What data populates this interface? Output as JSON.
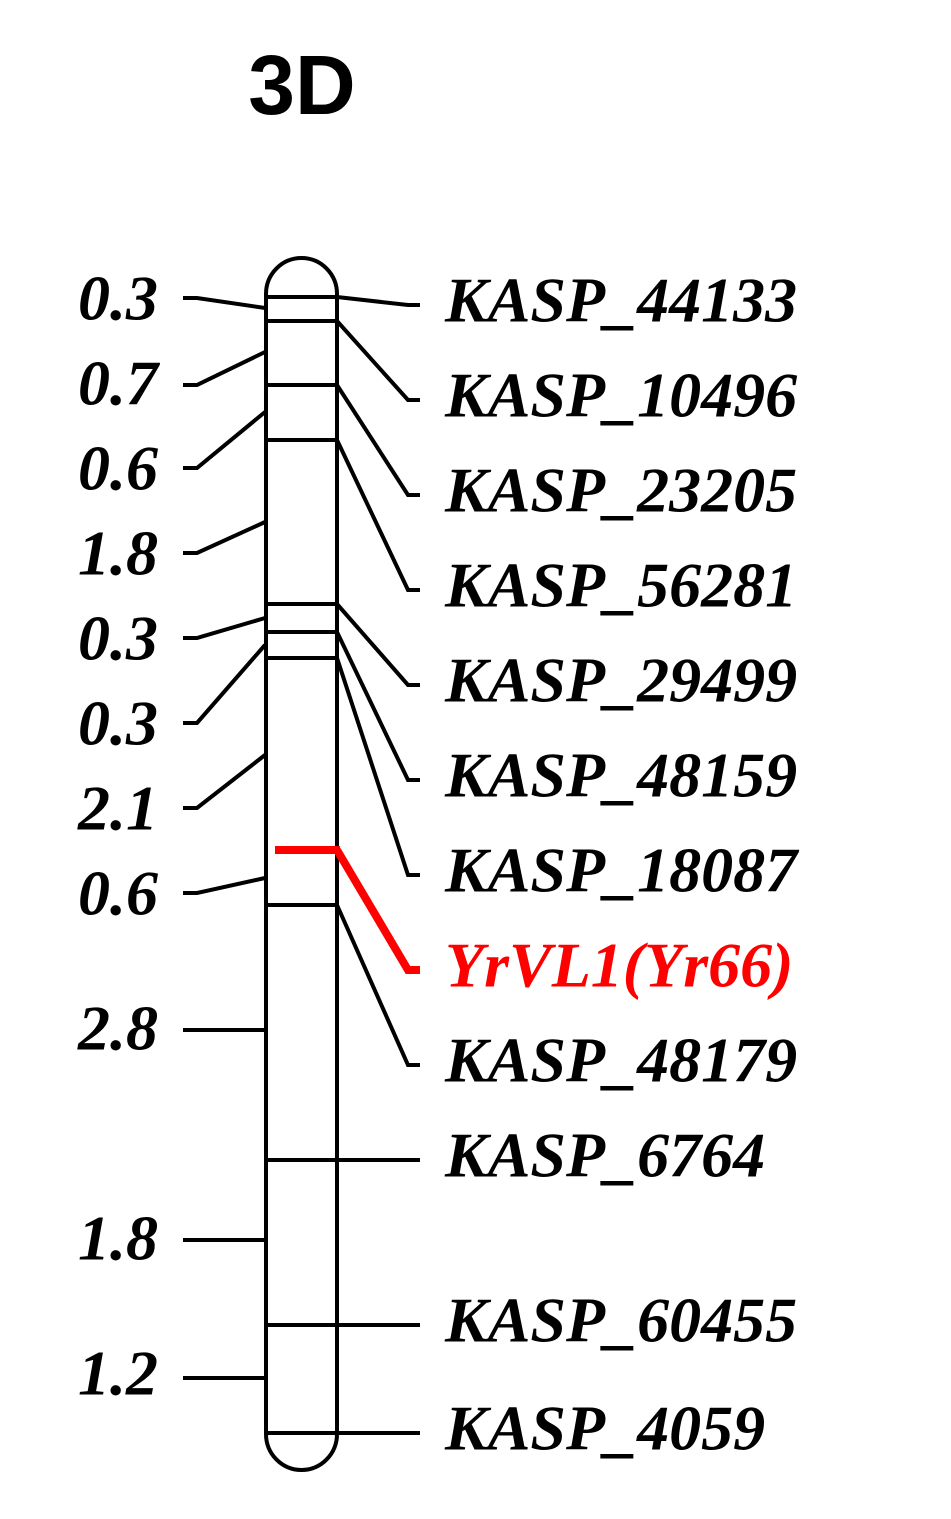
{
  "title": "3D",
  "intervals": [
    "0.3",
    "0.7",
    "0.6",
    "1.8",
    "0.3",
    "0.3",
    "2.1",
    "0.6",
    "2.8",
    "1.8",
    "1.2"
  ],
  "markers": [
    "KASP_44133",
    "KASP_10496",
    "KASP_23205",
    "KASP_56281",
    "KASP_29499",
    "KASP_48159",
    "KASP_18087",
    "YrVL1(Yr66)",
    "KASP_48179",
    "KASP_6764",
    "KASP_60455",
    "KASP_4059"
  ]
}
